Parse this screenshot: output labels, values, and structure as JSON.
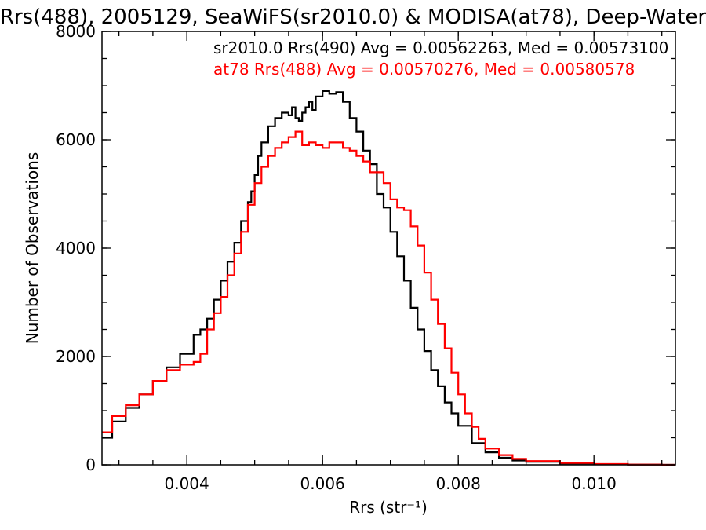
{
  "chart_data": {
    "type": "line",
    "title": "Rrs(488), 2005129, SeaWiFS(sr2010.0) & MODISA(at78), Deep-Water",
    "xlabel": "Rrs (str⁻¹)",
    "ylabel": "Number of Observations",
    "xlim": [
      0.00275,
      0.0112
    ],
    "ylim": [
      0,
      8000
    ],
    "xticks": [
      0.004,
      0.006,
      0.008,
      0.01
    ],
    "xtick_labels": [
      "0.004",
      "0.006",
      "0.008",
      "0.010"
    ],
    "yticks": [
      0,
      2000,
      4000,
      6000,
      8000
    ],
    "ytick_labels": [
      "0",
      "2000",
      "4000",
      "6000",
      "8000"
    ],
    "grid": false,
    "step": true,
    "annotations": [
      {
        "text": "sr2010.0 Rrs(490) Avg = 0.00562263, Med = 0.00573100",
        "color": "#000000"
      },
      {
        "text": "at78 Rrs(488) Avg = 0.00570276, Med = 0.00580578",
        "color": "#ff0000"
      }
    ],
    "series": [
      {
        "color": "#000000",
        "x": [
          0.00275,
          0.0029,
          0.0031,
          0.0033,
          0.0035,
          0.0037,
          0.0039,
          0.0041,
          0.0042,
          0.0043,
          0.0044,
          0.0045,
          0.0046,
          0.0047,
          0.0048,
          0.0049,
          0.00495,
          0.005,
          0.00505,
          0.0051,
          0.0052,
          0.0053,
          0.0054,
          0.0055,
          0.00555,
          0.0056,
          0.00565,
          0.0057,
          0.00575,
          0.0058,
          0.00585,
          0.0059,
          0.006,
          0.0061,
          0.0062,
          0.0063,
          0.0064,
          0.0065,
          0.0066,
          0.0067,
          0.0068,
          0.0069,
          0.007,
          0.0071,
          0.0072,
          0.0073,
          0.0074,
          0.0075,
          0.0076,
          0.0077,
          0.0078,
          0.0079,
          0.008,
          0.0082,
          0.0084,
          0.0086,
          0.0088,
          0.009,
          0.0095,
          0.01,
          0.0105,
          0.011,
          0.0112
        ],
        "values": [
          500,
          800,
          1050,
          1300,
          1550,
          1800,
          2050,
          2400,
          2500,
          2700,
          3050,
          3400,
          3750,
          4100,
          4500,
          4850,
          5050,
          5350,
          5700,
          5950,
          6250,
          6400,
          6500,
          6450,
          6600,
          6400,
          6350,
          6500,
          6600,
          6700,
          6550,
          6800,
          6900,
          6850,
          6880,
          6700,
          6400,
          6150,
          5800,
          5550,
          5000,
          4750,
          4300,
          3850,
          3400,
          2900,
          2500,
          2100,
          1750,
          1450,
          1150,
          950,
          720,
          400,
          230,
          130,
          80,
          55,
          25,
          10,
          5,
          0,
          0
        ]
      },
      {
        "color": "#ff0000",
        "x": [
          0.00275,
          0.0029,
          0.0031,
          0.0033,
          0.0035,
          0.0037,
          0.0039,
          0.0041,
          0.0042,
          0.0043,
          0.0044,
          0.0045,
          0.0046,
          0.0047,
          0.0048,
          0.0049,
          0.005,
          0.0051,
          0.0052,
          0.0053,
          0.0054,
          0.0055,
          0.0056,
          0.0057,
          0.0058,
          0.0059,
          0.006,
          0.0061,
          0.0062,
          0.0063,
          0.0064,
          0.0065,
          0.0066,
          0.0067,
          0.0068,
          0.0069,
          0.007,
          0.0071,
          0.0072,
          0.0073,
          0.0074,
          0.0075,
          0.0076,
          0.0077,
          0.0078,
          0.0079,
          0.008,
          0.0081,
          0.0082,
          0.0083,
          0.0084,
          0.0086,
          0.0088,
          0.009,
          0.0095,
          0.01,
          0.0105,
          0.011,
          0.0112
        ],
        "values": [
          600,
          900,
          1100,
          1300,
          1550,
          1750,
          1850,
          1900,
          2050,
          2500,
          2800,
          3100,
          3500,
          3900,
          4300,
          4800,
          5200,
          5500,
          5700,
          5850,
          5950,
          6050,
          6150,
          5900,
          5950,
          5900,
          5850,
          5950,
          5950,
          5850,
          5800,
          5700,
          5600,
          5400,
          5400,
          5200,
          4900,
          4750,
          4700,
          4400,
          4050,
          3550,
          3050,
          2600,
          2150,
          1700,
          1300,
          950,
          700,
          480,
          300,
          180,
          110,
          70,
          35,
          15,
          5,
          0,
          0
        ]
      }
    ]
  }
}
